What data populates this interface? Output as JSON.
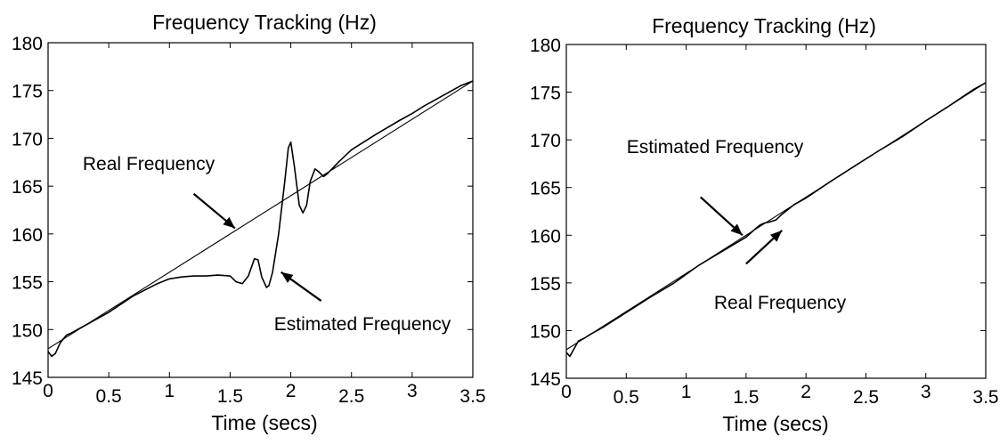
{
  "chart_data": [
    {
      "type": "line",
      "title": "Frequency Tracking (Hz)",
      "xlabel": "Time (secs)",
      "ylabel": "",
      "xlim": [
        0,
        3.5
      ],
      "ylim": [
        145,
        180
      ],
      "xticks": [
        "0",
        "0.5",
        "1",
        "1.5",
        "2",
        "2.5",
        "3",
        "3.5"
      ],
      "yticks": [
        "145",
        "150",
        "155",
        "160",
        "165",
        "170",
        "175",
        "180"
      ],
      "grid": false,
      "series": [
        {
          "name": "Real Frequency",
          "x": [
            0,
            3.5
          ],
          "y": [
            148,
            176
          ]
        },
        {
          "name": "Estimated Frequency",
          "x": [
            0,
            0.03,
            0.06,
            0.1,
            0.15,
            0.2,
            0.3,
            0.5,
            0.7,
            0.9,
            1.0,
            1.1,
            1.2,
            1.3,
            1.4,
            1.5,
            1.55,
            1.6,
            1.65,
            1.7,
            1.73,
            1.76,
            1.8,
            1.82,
            1.85,
            1.9,
            1.95,
            1.98,
            2.0,
            2.03,
            2.07,
            2.1,
            2.13,
            2.16,
            2.2,
            2.23,
            2.27,
            2.3,
            2.4,
            2.5,
            2.7,
            2.9,
            3.0,
            3.1,
            3.2,
            3.3,
            3.4,
            3.5
          ],
          "y": [
            147.7,
            147.2,
            147.5,
            148.6,
            149.4,
            149.7,
            150.4,
            151.8,
            153.5,
            154.8,
            155.3,
            155.5,
            155.6,
            155.6,
            155.7,
            155.6,
            155.0,
            154.8,
            155.6,
            157.4,
            157.3,
            155.5,
            154.4,
            154.6,
            156.0,
            160.0,
            165.5,
            169.0,
            169.6,
            167.0,
            163.0,
            162.2,
            163.0,
            165.5,
            166.8,
            166.5,
            166.0,
            166.3,
            167.6,
            168.8,
            170.4,
            171.9,
            172.6,
            173.4,
            174.1,
            174.8,
            175.5,
            176.0
          ]
        }
      ],
      "annotations": [
        {
          "text": "Real Frequency",
          "arrow_from": [
            1.2,
            164.2
          ],
          "arrow_to": [
            1.54,
            160.6
          ]
        },
        {
          "text": "Estimated Frequency",
          "arrow_from": [
            2.25,
            153.0
          ],
          "arrow_to": [
            1.92,
            156.0
          ]
        }
      ]
    },
    {
      "type": "line",
      "title": "Frequency Tracking (Hz)",
      "xlabel": "Time (secs)",
      "ylabel": "",
      "xlim": [
        0,
        3.5
      ],
      "ylim": [
        145,
        180
      ],
      "xticks": [
        "0",
        "0.5",
        "1",
        "1.5",
        "2",
        "2.5",
        "3",
        "3.5"
      ],
      "yticks": [
        "145",
        "150",
        "155",
        "160",
        "165",
        "170",
        "175",
        "180"
      ],
      "grid": false,
      "series": [
        {
          "name": "Real Frequency",
          "x": [
            0,
            3.5
          ],
          "y": [
            148,
            176
          ]
        },
        {
          "name": "Estimated Frequency",
          "x": [
            0,
            0.03,
            0.06,
            0.1,
            0.15,
            0.2,
            0.3,
            0.5,
            0.7,
            0.9,
            1.1,
            1.3,
            1.5,
            1.58,
            1.62,
            1.66,
            1.7,
            1.75,
            1.8,
            1.9,
            2.0,
            2.2,
            2.4,
            2.6,
            2.8,
            3.0,
            3.2,
            3.4,
            3.5
          ],
          "y": [
            147.7,
            147.3,
            148.0,
            148.9,
            149.2,
            149.6,
            150.3,
            151.9,
            153.5,
            155.0,
            156.8,
            158.3,
            159.8,
            160.7,
            161.1,
            161.3,
            161.4,
            161.6,
            162.2,
            163.2,
            163.9,
            165.6,
            167.2,
            168.8,
            170.3,
            172.0,
            173.6,
            175.3,
            176.0
          ]
        }
      ],
      "annotations": [
        {
          "text": "Estimated Frequency",
          "arrow_from": [
            1.12,
            164.0
          ],
          "arrow_to": [
            1.47,
            160.0
          ]
        },
        {
          "text": "Real Frequency",
          "arrow_from": [
            1.5,
            157.0
          ],
          "arrow_to": [
            1.8,
            160.5
          ]
        }
      ]
    }
  ]
}
